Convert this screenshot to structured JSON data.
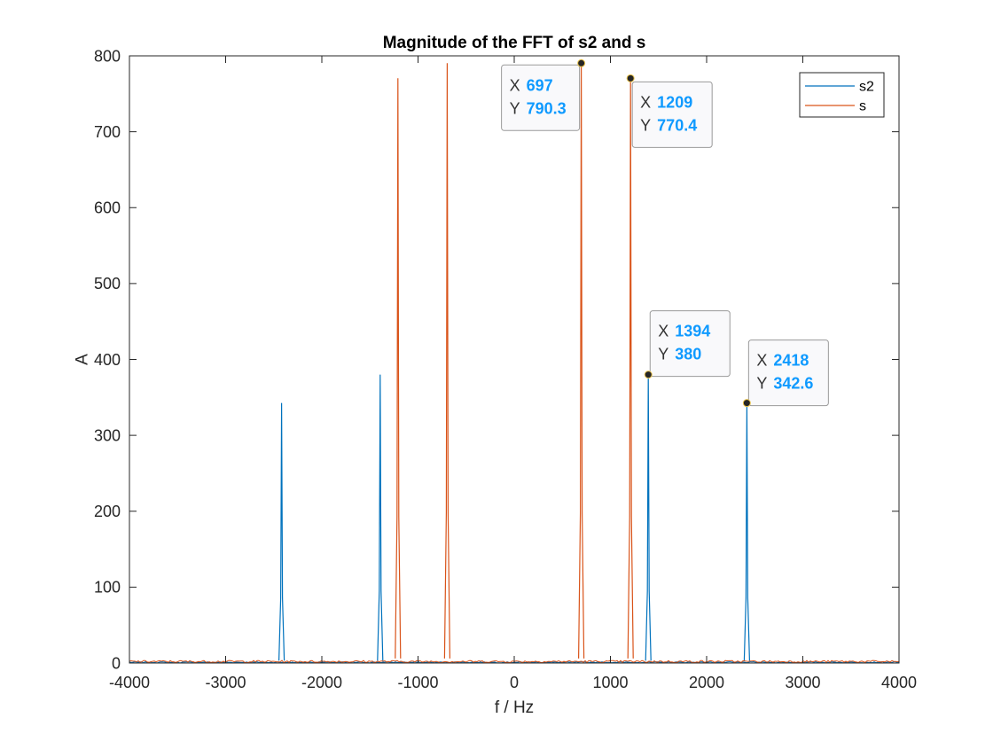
{
  "chart_data": {
    "type": "line",
    "title": "Magnitude of the FFT of s2 and s",
    "xlabel": "f / Hz",
    "ylabel": "A",
    "xlim": [
      -4000,
      4000
    ],
    "ylim": [
      0,
      800
    ],
    "xticks": [
      -4000,
      -3000,
      -2000,
      -1000,
      0,
      1000,
      2000,
      3000,
      4000
    ],
    "yticks": [
      0,
      100,
      200,
      300,
      400,
      500,
      600,
      700,
      800
    ],
    "grid": false,
    "legend_position": "top-right",
    "series": [
      {
        "name": "s2",
        "color": "#0072BD",
        "peaks": [
          {
            "x": -2418,
            "y": 342.6
          },
          {
            "x": -1394,
            "y": 380
          },
          {
            "x": 1394,
            "y": 380
          },
          {
            "x": 2418,
            "y": 342.6
          }
        ],
        "noise_floor": 1
      },
      {
        "name": "s",
        "color": "#D95319",
        "peaks": [
          {
            "x": -1209,
            "y": 770.4
          },
          {
            "x": -697,
            "y": 790.3
          },
          {
            "x": 697,
            "y": 790.3
          },
          {
            "x": 1209,
            "y": 770.4
          }
        ],
        "noise_floor": 2
      }
    ],
    "datatips": [
      {
        "x_label": "X",
        "x_value": "697",
        "y_label": "Y",
        "y_value": "790.3",
        "x": 697,
        "y": 790.3
      },
      {
        "x_label": "X",
        "x_value": "1209",
        "y_label": "Y",
        "y_value": "770.4",
        "x": 1209,
        "y": 770.4
      },
      {
        "x_label": "X",
        "x_value": "1394",
        "y_label": "Y",
        "y_value": "380",
        "x": 1394,
        "y": 380
      },
      {
        "x_label": "X",
        "x_value": "2418",
        "y_label": "Y",
        "y_value": "342.6",
        "x": 2418,
        "y": 342.6
      }
    ]
  }
}
